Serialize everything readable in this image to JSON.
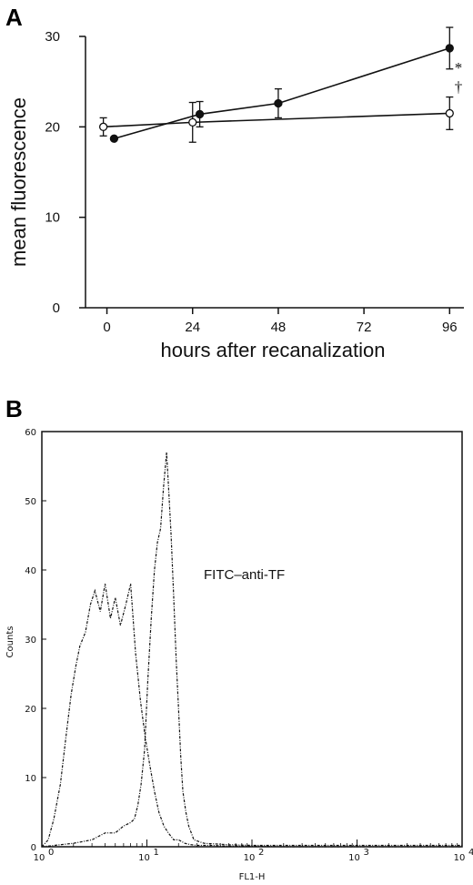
{
  "chart_data": [
    {
      "panel": "A",
      "type": "line",
      "xlabel": "hours after recanalization",
      "ylabel": "mean fluorescence",
      "xlim": [
        -6,
        100
      ],
      "ylim": [
        0,
        30
      ],
      "xticks": [
        0,
        24,
        48,
        72,
        96
      ],
      "yticks": [
        0,
        10,
        20,
        30
      ],
      "series": [
        {
          "marker": "filled-circle",
          "x": [
            2,
            26,
            48,
            96
          ],
          "y": [
            18.7,
            21.4,
            22.6,
            28.7
          ],
          "err": [
            0,
            1.4,
            1.6,
            2.3
          ]
        },
        {
          "marker": "open-circle",
          "x": [
            -1,
            24,
            96
          ],
          "y": [
            20.0,
            20.5,
            21.5
          ],
          "err": [
            1.0,
            2.2,
            1.8
          ]
        }
      ],
      "significance_marks": [
        "*",
        "†"
      ]
    },
    {
      "panel": "B",
      "type": "area",
      "xlabel": "FL1-H",
      "ylabel": "Counts",
      "xscale": "log",
      "xlim": [
        1,
        10000
      ],
      "ylim": [
        0,
        60
      ],
      "yticks": [
        0,
        10,
        20,
        30,
        40,
        50,
        60
      ],
      "xtick_labels": [
        "10",
        "10",
        "10",
        "10",
        "10"
      ],
      "xtick_exponents": [
        "0",
        "1",
        "2",
        "3",
        "4"
      ],
      "annotation": "FITC–anti-TF",
      "series": [
        {
          "x": [
            1,
            1.15,
            1.3,
            1.5,
            1.7,
            1.9,
            2.1,
            2.3,
            2.6,
            2.9,
            3.2,
            3.6,
            4.0,
            4.5,
            5.0,
            5.6,
            6.3,
            7.0,
            7.8,
            8.7,
            9.6,
            10.6,
            11.8,
            13.0,
            14.5,
            16.0,
            18.0,
            20.0,
            23.0,
            26.0,
            30.0,
            40.0,
            60.0,
            100.0,
            200.0,
            1000.0,
            10000.0
          ],
          "y": [
            0,
            1,
            4,
            9,
            16,
            22,
            26,
            29,
            31,
            35,
            37,
            34,
            38,
            33,
            36,
            32,
            35,
            38,
            28,
            21,
            16,
            12,
            8,
            5,
            3,
            2,
            1,
            1,
            0.5,
            0.3,
            0.2,
            0.2,
            0.1,
            0.1,
            0,
            0,
            0
          ]
        },
        {
          "x": [
            1,
            2,
            3,
            4,
            5,
            6,
            7,
            7.6,
            8.2,
            8.8,
            9.5,
            10.2,
            11.0,
            11.8,
            12.6,
            13.5,
            14.4,
            15.4,
            16.2,
            17.0,
            18.0,
            19.0,
            20.0,
            21.0,
            22.0,
            23.5,
            25.0,
            28.0,
            35.0,
            60.0,
            100.0,
            1000.0,
            10000.0
          ],
          "y": [
            0,
            0.5,
            1,
            2,
            2,
            3,
            3.5,
            4,
            6,
            9,
            14,
            24,
            33,
            40,
            44,
            46,
            52,
            57,
            51,
            45,
            36,
            27,
            20,
            13,
            8,
            5,
            3,
            1,
            0.5,
            0.3,
            0.2,
            0.2,
            0.2
          ]
        }
      ]
    }
  ]
}
